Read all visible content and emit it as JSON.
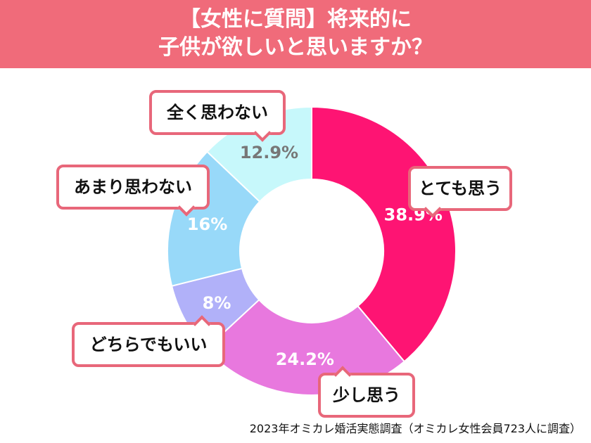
{
  "header": {
    "line1": "【女性に質問】将来的に",
    "line2": "子供が欲しいと思いますか？"
  },
  "chart_data": {
    "type": "pie",
    "donut": true,
    "title": "【女性に質問】将来的に子供が欲しいと思いますか？",
    "categories": [
      "とても思う",
      "少し思う",
      "どちらでもいい",
      "あまり思わない",
      "全く思わない"
    ],
    "values": [
      38.9,
      24.2,
      8,
      16,
      12.9
    ],
    "labels": [
      "38.9%",
      "24.2%",
      "8%",
      "16%",
      "12.9%"
    ],
    "colors": [
      "#fe1473",
      "#e878de",
      "#b1b1f9",
      "#98d9f9",
      "#c7f8fb"
    ],
    "label_colors": [
      "#ffffff",
      "#ffffff",
      "#ffffff",
      "#ffffff",
      "#777777"
    ],
    "start": "12 o'clock clockwise"
  },
  "source": "2023年オミカレ婚活実態調査（オミカレ女性会員723人に調査）"
}
